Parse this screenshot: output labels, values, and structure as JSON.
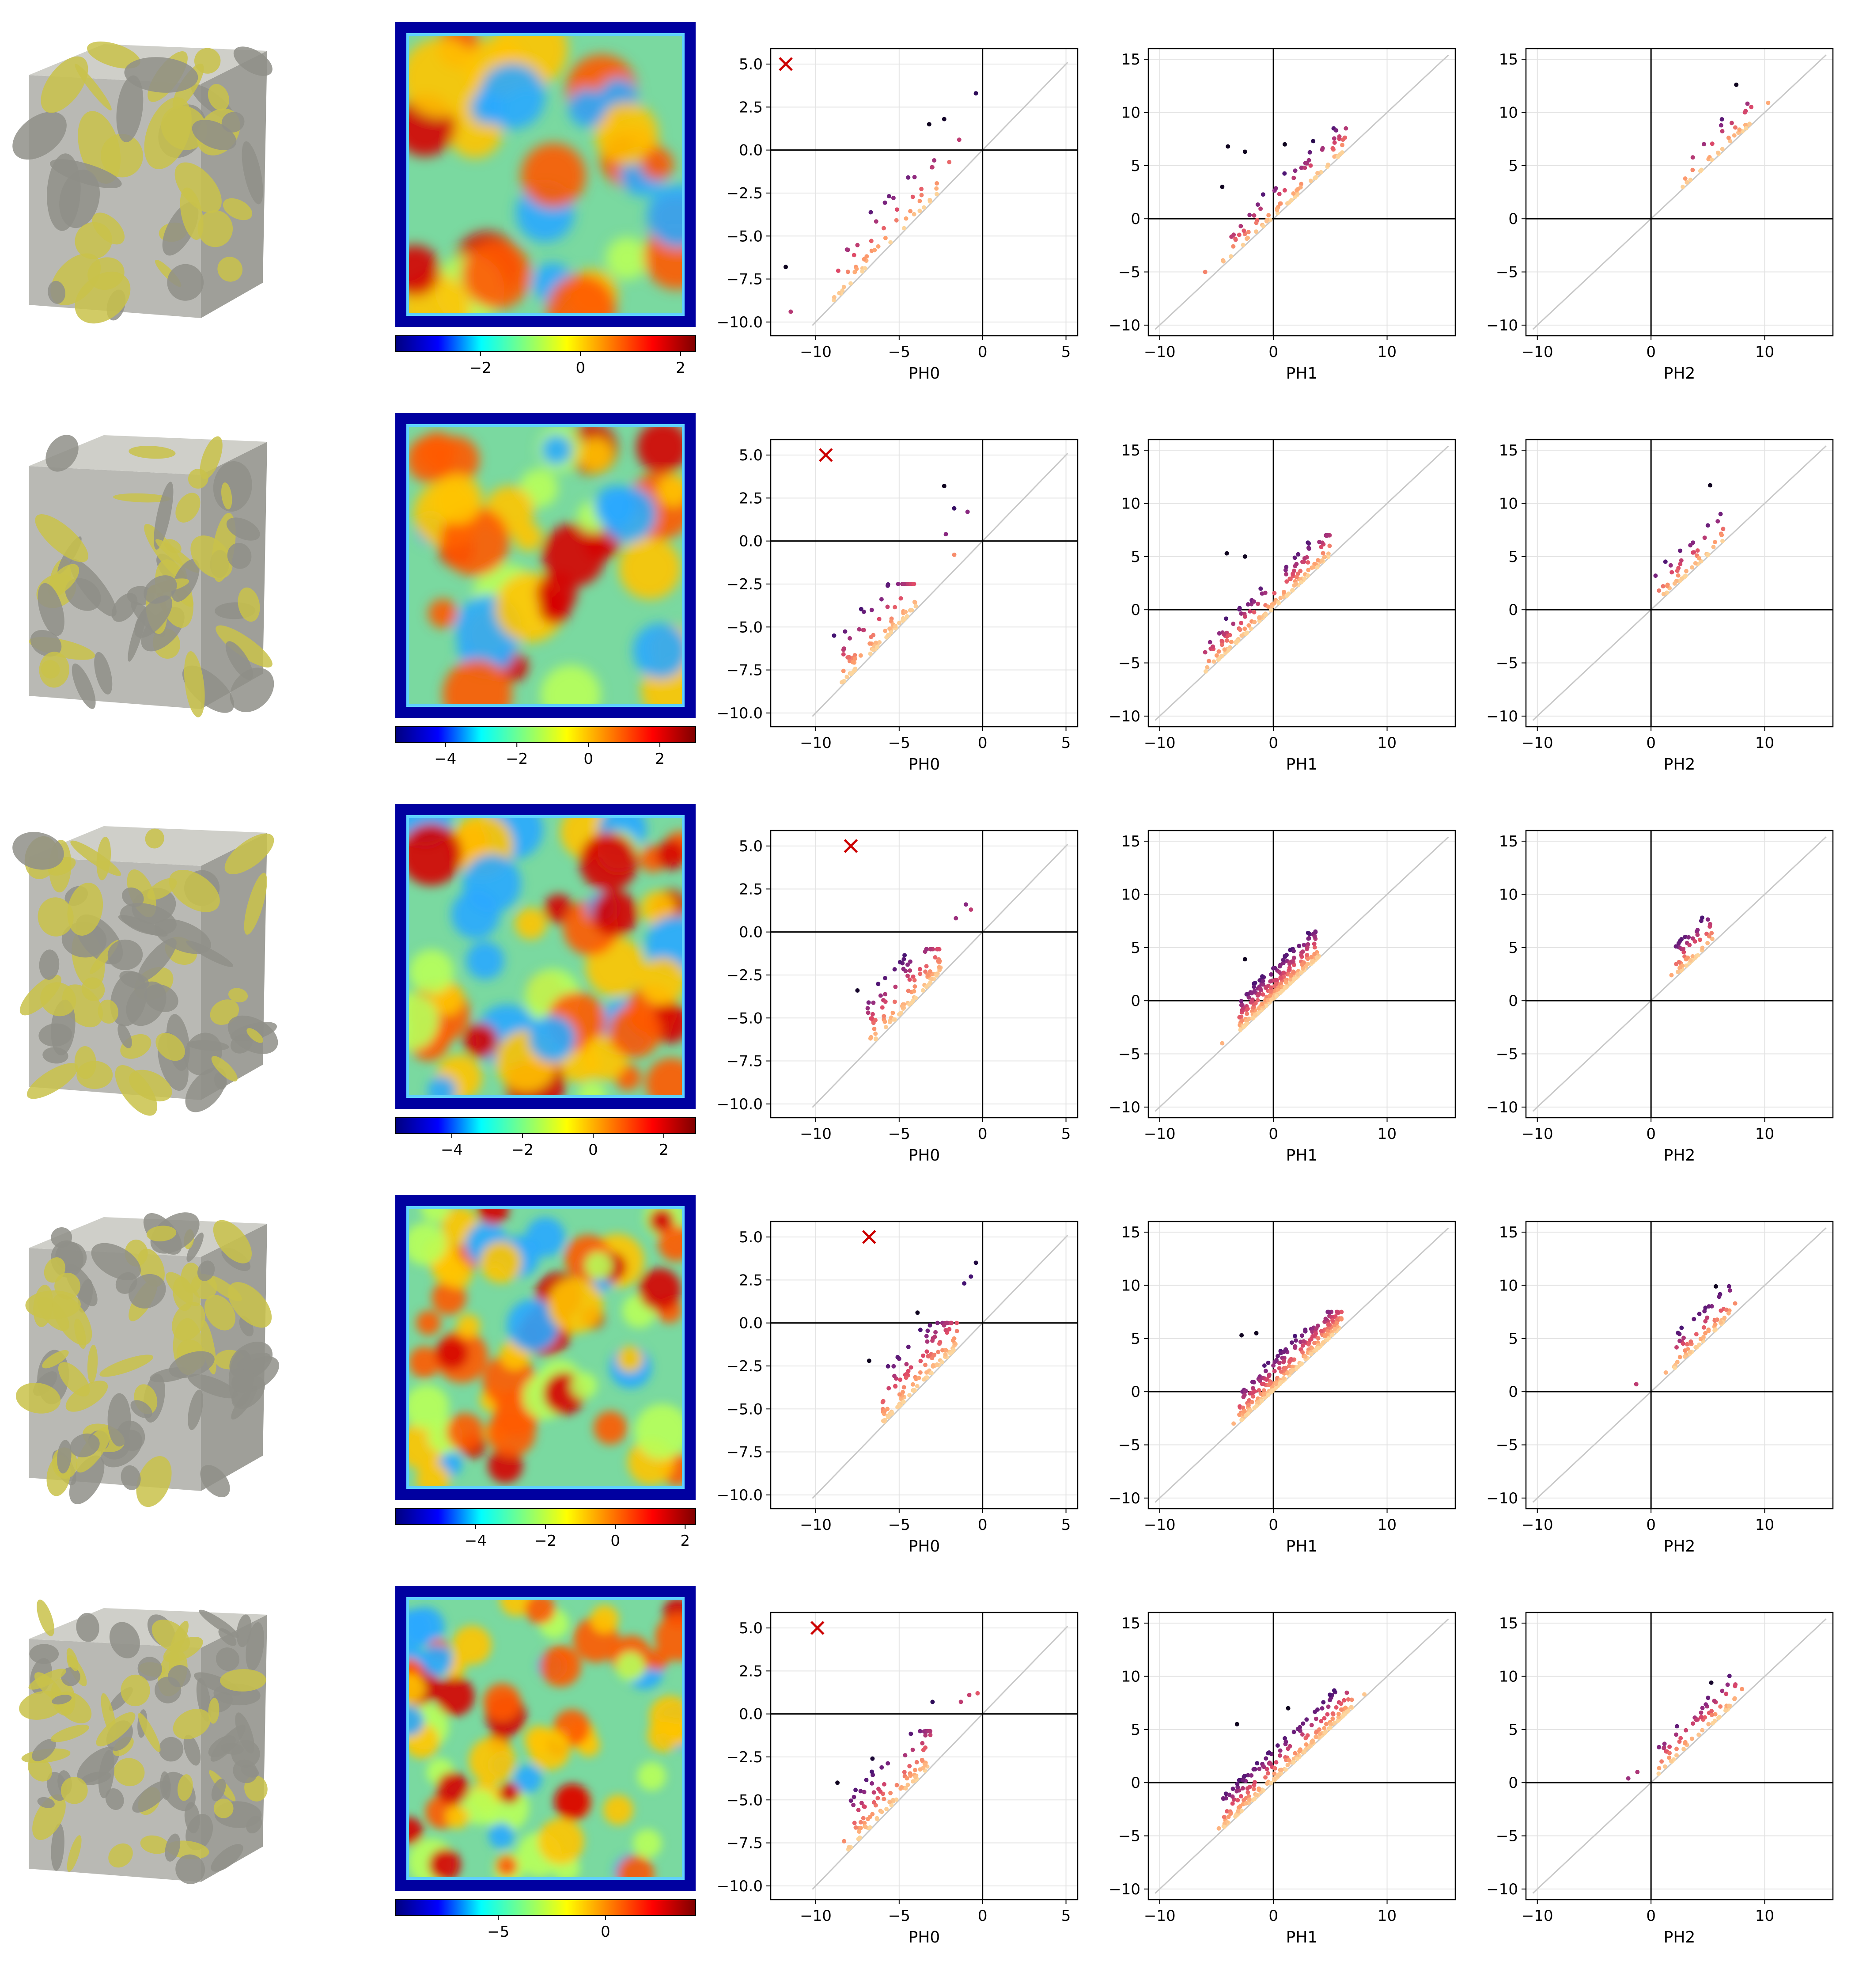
{
  "palette": {
    "diagonal": "#c8c8c8",
    "grid": "#e3e3e3",
    "cross": "#cc0000",
    "cube_yellow": "#c9c24a",
    "cube_gray": "#b9b9b4",
    "magma": [
      "#000004",
      "#3b0f70",
      "#8c2981",
      "#de4968",
      "#fe9f6d",
      "#fcfdbf"
    ],
    "jet": [
      "#00007f",
      "#0000ff",
      "#00ffff",
      "#7fff7f",
      "#ffff00",
      "#ff7f00",
      "#ff0000",
      "#7f0000"
    ]
  },
  "rows": [
    {
      "colorbar": {
        "min": -3.7,
        "max": 2.3,
        "ticks": [
          -2,
          0,
          2
        ],
        "tick_labels": [
          "−2",
          "0",
          "2"
        ]
      },
      "panels": [
        {
          "xlabel": "PH0",
          "marker_birth": -11.8,
          "marker_death": 5.0
        },
        {
          "xlabel": "PH1"
        },
        {
          "xlabel": "PH2"
        }
      ]
    },
    {
      "colorbar": {
        "min": -5.4,
        "max": 3.0,
        "ticks": [
          -4,
          -2,
          0,
          2
        ],
        "tick_labels": [
          "−4",
          "−2",
          "0",
          "2"
        ]
      },
      "panels": [
        {
          "xlabel": "PH0",
          "marker_birth": -9.4,
          "marker_death": 5.0
        },
        {
          "xlabel": "PH1"
        },
        {
          "xlabel": "PH2"
        }
      ]
    },
    {
      "colorbar": {
        "min": -5.6,
        "max": 2.9,
        "ticks": [
          -4,
          -2,
          0,
          2
        ],
        "tick_labels": [
          "−4",
          "−2",
          "0",
          "2"
        ]
      },
      "panels": [
        {
          "xlabel": "PH0",
          "marker_birth": -7.9,
          "marker_death": 5.0
        },
        {
          "xlabel": "PH1"
        },
        {
          "xlabel": "PH2"
        }
      ]
    },
    {
      "colorbar": {
        "min": -6.3,
        "max": 2.3,
        "ticks": [
          -4,
          -2,
          0,
          2
        ],
        "tick_labels": [
          "−4",
          "−2",
          "0",
          "2"
        ]
      },
      "panels": [
        {
          "xlabel": "PH0",
          "marker_birth": -6.8,
          "marker_death": 5.0
        },
        {
          "xlabel": "PH1"
        },
        {
          "xlabel": "PH2"
        }
      ]
    },
    {
      "colorbar": {
        "min": -9.8,
        "max": 4.2,
        "ticks": [
          -5,
          0
        ],
        "tick_labels": [
          "−5",
          "0"
        ]
      },
      "panels": [
        {
          "xlabel": "PH0",
          "marker_birth": -9.9,
          "marker_death": 5.0
        },
        {
          "xlabel": "PH1"
        },
        {
          "xlabel": "PH2"
        }
      ]
    }
  ],
  "chart_data": {
    "type": "scatter",
    "description": "Persistence diagrams (birth vs death) for homology dimensions 0, 1, 2 across five samples, each with a 3D isosurface render and a 2D field slice with colorbar.",
    "axes": {
      "PH0": {
        "xlim": [
          -12.7,
          5.7
        ],
        "ylim": [
          -10.8,
          5.9
        ],
        "xticks": [
          -10,
          -5,
          0,
          5
        ],
        "xtick_labels": [
          "−10",
          "−5",
          "0",
          "5"
        ],
        "yticks": [
          -10.0,
          -7.5,
          -5.0,
          -2.5,
          0.0,
          2.5,
          5.0
        ],
        "ytick_labels": [
          "−10.0",
          "−7.5",
          "−5.0",
          "−2.5",
          "0.0",
          "2.5",
          "5.0"
        ]
      },
      "PH1": {
        "xlim": [
          -11.0,
          16.0
        ],
        "ylim": [
          -11.0,
          16.0
        ],
        "xticks": [
          -10,
          0,
          10
        ],
        "xtick_labels": [
          "−10",
          "0",
          "10"
        ],
        "yticks": [
          -10,
          -5,
          0,
          5,
          10,
          15
        ],
        "ytick_labels": [
          "−10",
          "−5",
          "0",
          "5",
          "10",
          "15"
        ]
      },
      "PH2": {
        "xlim": [
          -11.0,
          16.0
        ],
        "ylim": [
          -11.0,
          16.0
        ],
        "xticks": [
          -10,
          0,
          10
        ],
        "xtick_labels": [
          "−10",
          "0",
          "10"
        ],
        "yticks": [
          -10,
          -5,
          0,
          5,
          10,
          15
        ],
        "ytick_labels": [
          "−10",
          "−5",
          "0",
          "5",
          "10",
          "15"
        ]
      }
    },
    "diagonal": true,
    "grid": true,
    "clusters": [
      {
        "PH0": {
          "n": 55,
          "b": [
            -9.0,
            -2.5
          ],
          "d": [
            -8.0,
            -2.0
          ],
          "outliers": [
            [
              -11.5,
              -9.4
            ],
            [
              -11.8,
              -6.8
            ],
            [
              -3.2,
              1.5
            ],
            [
              -2.3,
              1.8
            ],
            [
              -1.4,
              0.6
            ],
            [
              -0.4,
              3.3
            ],
            [
              -2.0,
              -0.7
            ],
            [
              -2.9,
              -0.6
            ]
          ]
        },
        "PH1": {
          "n": 90,
          "b": [
            -4.5,
            6.5
          ],
          "d": [
            -4.0,
            7.5
          ],
          "outliers": [
            [
              -4.0,
              6.8
            ],
            [
              -2.5,
              6.3
            ],
            [
              -4.5,
              3.0
            ],
            [
              1.0,
              7.0
            ],
            [
              3.5,
              7.3
            ],
            [
              -6.0,
              -5.0
            ],
            [
              -3.5,
              -1.5
            ]
          ]
        },
        "PH2": {
          "n": 35,
          "b": [
            3.0,
            9.0
          ],
          "d": [
            3.5,
            11.0
          ],
          "outliers": [
            [
              7.5,
              12.6
            ],
            [
              2.8,
              3.0
            ],
            [
              10.3,
              10.9
            ]
          ]
        }
      },
      {
        "PH0": {
          "n": 90,
          "b": [
            -8.5,
            -4.0
          ],
          "d": [
            -7.5,
            -3.5
          ],
          "outliers": [
            [
              -2.3,
              3.2
            ],
            [
              -1.7,
              1.9
            ],
            [
              -0.9,
              1.7
            ],
            [
              -2.2,
              0.4
            ],
            [
              -1.7,
              -0.8
            ],
            [
              -8.9,
              -5.5
            ]
          ]
        },
        "PH1": {
          "n": 160,
          "b": [
            -6.0,
            5.0
          ],
          "d": [
            -4.5,
            6.0
          ],
          "outliers": [
            [
              -4.1,
              5.3
            ],
            [
              -2.5,
              5.0
            ],
            [
              4.2,
              5.9
            ],
            [
              -6.0,
              -4.0
            ]
          ]
        },
        "PH2": {
          "n": 50,
          "b": [
            1.0,
            6.5
          ],
          "d": [
            1.5,
            8.0
          ],
          "outliers": [
            [
              5.2,
              11.7
            ],
            [
              0.4,
              3.2
            ],
            [
              0.7,
              1.8
            ]
          ]
        }
      },
      {
        "PH0": {
          "n": 110,
          "b": [
            -7.0,
            -2.5
          ],
          "d": [
            -6.0,
            -2.0
          ],
          "outliers": [
            [
              -1.0,
              1.6
            ],
            [
              -0.7,
              1.3
            ],
            [
              -1.6,
              0.8
            ],
            [
              -6.4,
              -6.2
            ],
            [
              -7.5,
              -3.4
            ]
          ]
        },
        "PH1": {
          "n": 260,
          "b": [
            -3.0,
            4.0
          ],
          "d": [
            -2.5,
            5.5
          ],
          "outliers": [
            [
              -2.5,
              3.9
            ],
            [
              -4.5,
              -4.0
            ],
            [
              -1.0,
              -0.3
            ]
          ]
        },
        "PH2": {
          "n": 50,
          "b": [
            2.0,
            5.5
          ],
          "d": [
            2.5,
            7.5
          ],
          "outliers": [
            [
              4.5,
              7.8
            ],
            [
              5.2,
              7.2
            ],
            [
              1.8,
              2.4
            ]
          ]
        }
      },
      {
        "PH0": {
          "n": 130,
          "b": [
            -6.0,
            -1.5
          ],
          "d": [
            -5.0,
            -1.0
          ],
          "outliers": [
            [
              -0.4,
              3.5
            ],
            [
              -0.7,
              2.7
            ],
            [
              -1.1,
              2.3
            ],
            [
              -3.9,
              0.6
            ],
            [
              -6.8,
              -2.2
            ],
            [
              -5.1,
              -4.9
            ]
          ]
        },
        "PH1": {
          "n": 280,
          "b": [
            -3.0,
            6.0
          ],
          "d": [
            -2.5,
            6.5
          ],
          "outliers": [
            [
              -2.8,
              5.3
            ],
            [
              -1.5,
              5.5
            ],
            [
              -3.5,
              -3.0
            ],
            [
              5.2,
              6.7
            ]
          ]
        },
        "PH2": {
          "n": 70,
          "b": [
            2.0,
            7.0
          ],
          "d": [
            3.0,
            9.0
          ],
          "outliers": [
            [
              5.7,
              9.9
            ],
            [
              -1.3,
              0.7
            ],
            [
              1.3,
              1.8
            ],
            [
              7.4,
              8.3
            ]
          ]
        }
      },
      {
        "PH0": {
          "n": 100,
          "b": [
            -8.5,
            -3.0
          ],
          "d": [
            -7.5,
            -2.0
          ],
          "outliers": [
            [
              -0.3,
              1.2
            ],
            [
              -0.8,
              1.1
            ],
            [
              -1.3,
              0.7
            ],
            [
              -3.0,
              0.7
            ],
            [
              -8.3,
              -7.4
            ],
            [
              -8.7,
              -4.0
            ],
            [
              -6.6,
              -2.6
            ]
          ]
        },
        "PH1": {
          "n": 230,
          "b": [
            -4.5,
            7.0
          ],
          "d": [
            -4.0,
            8.5
          ],
          "outliers": [
            [
              -3.2,
              5.5
            ],
            [
              1.3,
              7.0
            ],
            [
              8.0,
              8.3
            ],
            [
              -4.8,
              -4.3
            ]
          ]
        },
        "PH2": {
          "n": 70,
          "b": [
            0.5,
            7.5
          ],
          "d": [
            1.0,
            9.5
          ],
          "outliers": [
            [
              5.3,
              9.4
            ],
            [
              -2.0,
              0.4
            ],
            [
              -1.2,
              1.0
            ],
            [
              8.0,
              8.8
            ]
          ]
        }
      }
    ]
  }
}
